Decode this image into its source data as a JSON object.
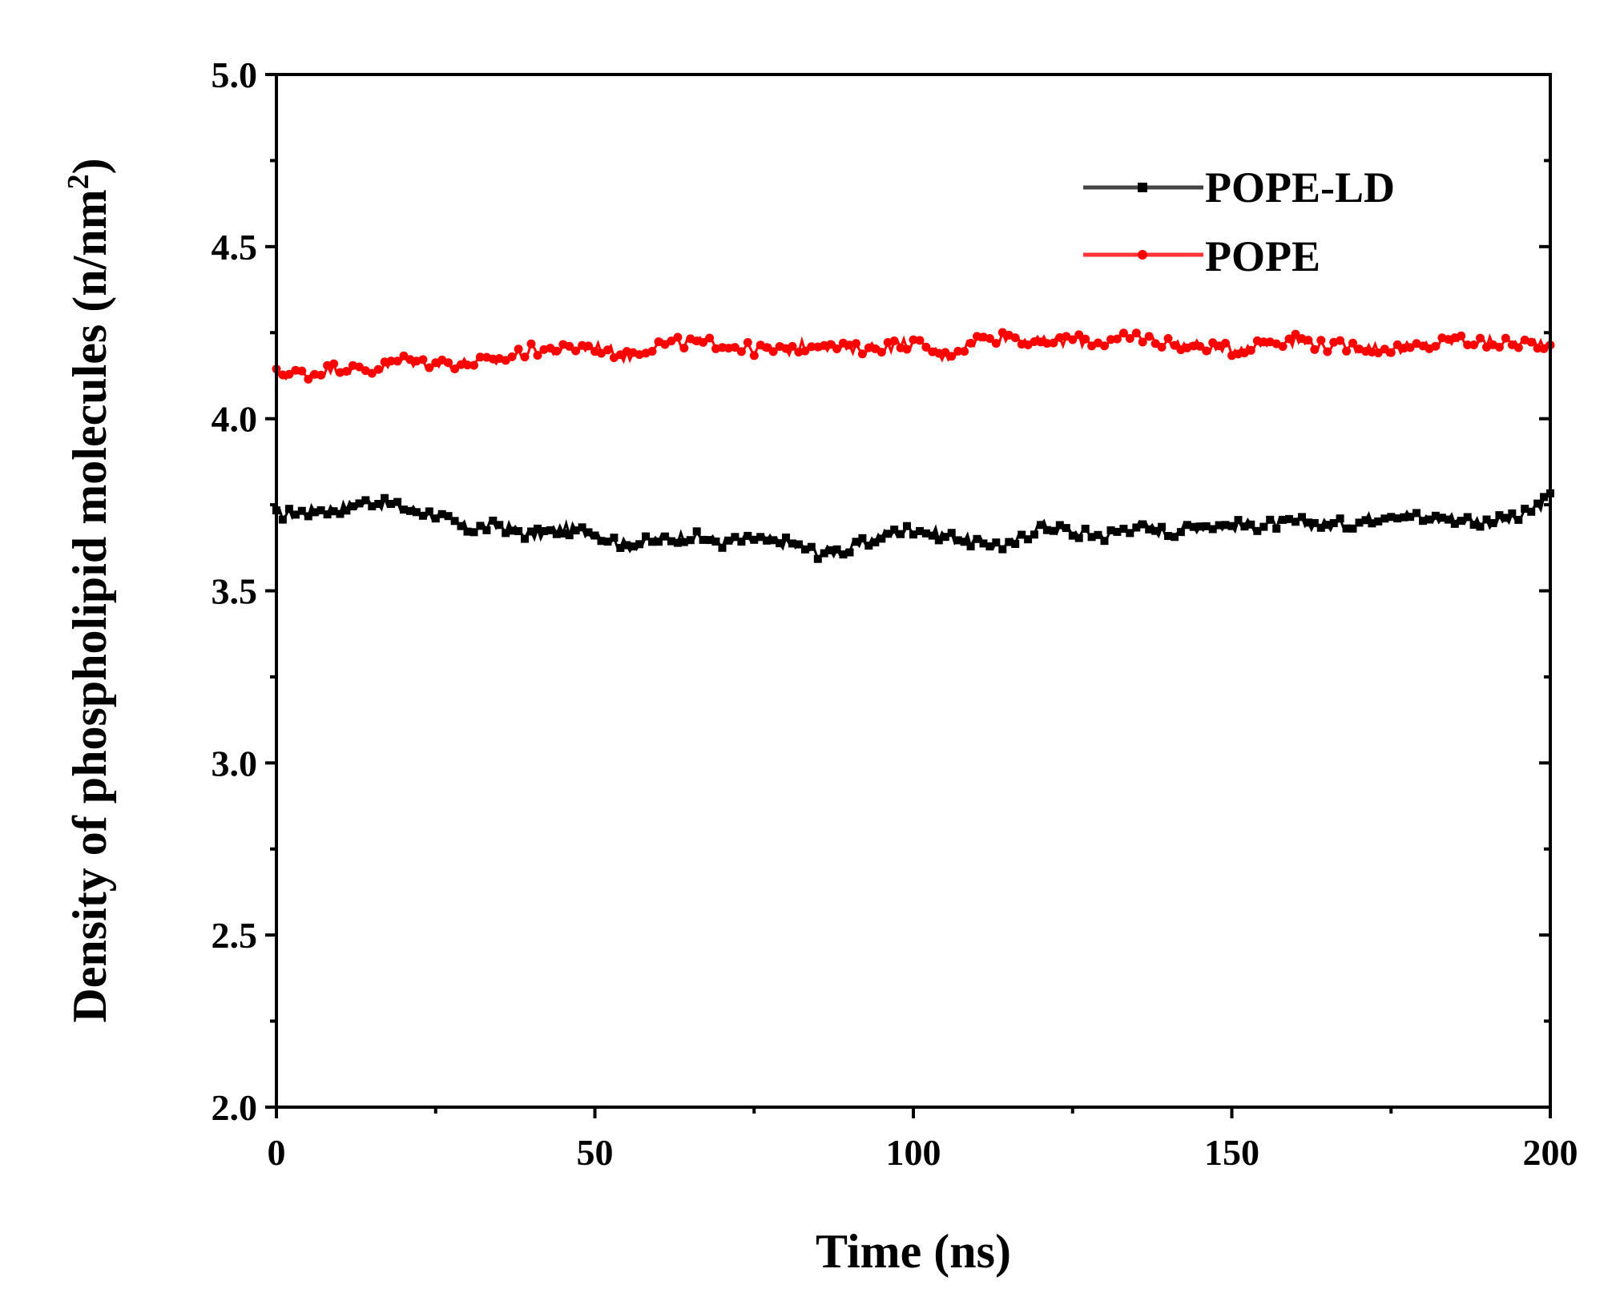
{
  "chart_data": {
    "type": "line",
    "xlabel": "Time (ns)",
    "ylabel_text": "Density of phospholipid molecules (n/nm",
    "ylabel_sup": "2",
    "ylabel_close": ")",
    "xlim": [
      0,
      200
    ],
    "ylim": [
      2.0,
      5.0
    ],
    "x_ticks": [
      0,
      50,
      100,
      150,
      200
    ],
    "x_tick_labels": [
      "0",
      "50",
      "100",
      "150",
      "200"
    ],
    "x_minor_step": 25,
    "y_ticks": [
      2.0,
      2.5,
      3.0,
      3.5,
      4.0,
      4.5,
      5.0
    ],
    "y_tick_labels": [
      "2.0",
      "2.5",
      "3.0",
      "3.5",
      "4.0",
      "4.5",
      "5.0"
    ],
    "y_minor_step": 0.25,
    "legend_position": "top-right",
    "series": [
      {
        "name": "POPE-LD",
        "color": "#000000",
        "marker": "square",
        "x": [
          0,
          5,
          10,
          15,
          20,
          25,
          30,
          35,
          40,
          45,
          50,
          55,
          60,
          65,
          70,
          75,
          80,
          85,
          90,
          95,
          100,
          105,
          110,
          115,
          120,
          125,
          130,
          135,
          140,
          145,
          150,
          155,
          160,
          165,
          170,
          175,
          180,
          185,
          190,
          195,
          200
        ],
        "values": [
          3.72,
          3.73,
          3.74,
          3.76,
          3.74,
          3.72,
          3.68,
          3.69,
          3.66,
          3.68,
          3.67,
          3.63,
          3.65,
          3.66,
          3.64,
          3.65,
          3.64,
          3.61,
          3.62,
          3.66,
          3.68,
          3.66,
          3.64,
          3.63,
          3.69,
          3.67,
          3.66,
          3.69,
          3.67,
          3.69,
          3.69,
          3.69,
          3.7,
          3.69,
          3.7,
          3.73,
          3.71,
          3.71,
          3.7,
          3.71,
          3.77
        ]
      },
      {
        "name": "POPE",
        "color": "#ff0000",
        "marker": "circle",
        "x": [
          0,
          5,
          10,
          15,
          20,
          25,
          30,
          35,
          40,
          45,
          50,
          55,
          60,
          65,
          70,
          75,
          80,
          85,
          90,
          95,
          100,
          105,
          110,
          115,
          120,
          125,
          130,
          135,
          140,
          145,
          150,
          155,
          160,
          165,
          170,
          175,
          180,
          185,
          190,
          195,
          200
        ],
        "values": [
          4.13,
          4.13,
          4.15,
          4.14,
          4.17,
          4.16,
          4.16,
          4.17,
          4.2,
          4.2,
          4.21,
          4.18,
          4.22,
          4.22,
          4.22,
          4.2,
          4.2,
          4.22,
          4.2,
          4.21,
          4.22,
          4.18,
          4.23,
          4.24,
          4.22,
          4.23,
          4.22,
          4.24,
          4.22,
          4.21,
          4.2,
          4.22,
          4.23,
          4.21,
          4.21,
          4.2,
          4.21,
          4.23,
          4.22,
          4.22,
          4.22
        ]
      }
    ]
  }
}
